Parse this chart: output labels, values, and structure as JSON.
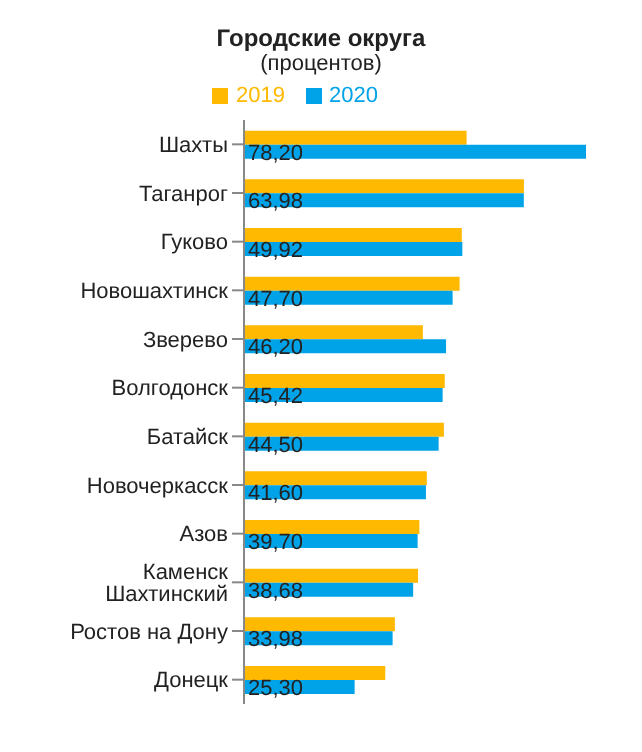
{
  "chart_data": {
    "type": "bar",
    "orientation": "horizontal",
    "title": "Городские округа",
    "subtitle": "(процентов)",
    "legend": "top",
    "categories": [
      "Шахты",
      "Таганрог",
      "Гуково",
      "Новошахтинск",
      "Зверево",
      "Волгодонск",
      "Батайск",
      "Новочеркасск",
      "Азов",
      "Каменск Шахтинский",
      "Ростов на Дону",
      "Донецк"
    ],
    "series": [
      {
        "name": "2019",
        "color": "#ffb900",
        "values": [
          50.9,
          64.0,
          49.8,
          49.3,
          40.9,
          45.9,
          45.7,
          41.8,
          40.1,
          39.8,
          34.5,
          32.3
        ]
      },
      {
        "name": "2020",
        "color": "#00a2e8",
        "values": [
          78.2,
          63.98,
          49.92,
          47.7,
          46.2,
          45.42,
          44.5,
          41.6,
          39.7,
          38.68,
          33.98,
          25.3
        ],
        "value_labels": [
          "78,20",
          "63,98",
          "49,92",
          "47,70",
          "46,20",
          "45,42",
          "44,50",
          "41,60",
          "39,70",
          "38,68",
          "33,98",
          "25,30"
        ]
      }
    ]
  }
}
